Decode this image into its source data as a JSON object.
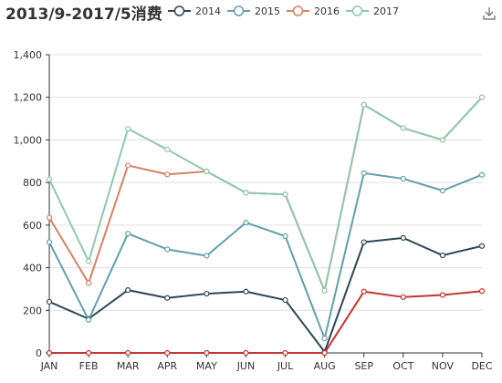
{
  "chart_data": {
    "type": "line",
    "title": "2013/9-2017/5消费",
    "categories": [
      "JAN",
      "FEB",
      "MAR",
      "APR",
      "MAY",
      "JUN",
      "JUL",
      "AUG",
      "SEP",
      "OCT",
      "NOV",
      "DEC"
    ],
    "ylim": [
      0,
      1400
    ],
    "yticks": [
      0,
      200,
      400,
      600,
      800,
      1000,
      1200,
      1400
    ],
    "ytick_labels": [
      "0",
      "200",
      "400",
      "600",
      "800",
      "1,000",
      "1,200",
      "1,400"
    ],
    "grid": true,
    "legend_position": "top",
    "series": [
      {
        "name": "2014",
        "color": "#2f4554",
        "values": [
          240,
          160,
          295,
          258,
          278,
          288,
          248,
          5,
          520,
          540,
          458,
          502
        ]
      },
      {
        "name": "2015",
        "color": "#61a0a8",
        "values": [
          520,
          155,
          560,
          486,
          456,
          612,
          548,
          68,
          844,
          818,
          762,
          836
        ]
      },
      {
        "name": "2016",
        "color": "#d48265",
        "values": [
          635,
          328,
          880,
          838,
          852,
          752,
          744,
          292,
          1165,
          1055,
          1000,
          1200
        ]
      },
      {
        "name": "2017",
        "color": "#91c7ae",
        "values": [
          815,
          430,
          1052,
          955,
          852,
          752,
          744,
          292,
          1165,
          1055,
          1000,
          1200
        ]
      },
      {
        "name": "",
        "color": "#c23531",
        "values": [
          0,
          0,
          0,
          0,
          0,
          0,
          0,
          0,
          288,
          262,
          272,
          290
        ]
      }
    ]
  },
  "toolbar": {
    "download_icon": "download-icon"
  }
}
